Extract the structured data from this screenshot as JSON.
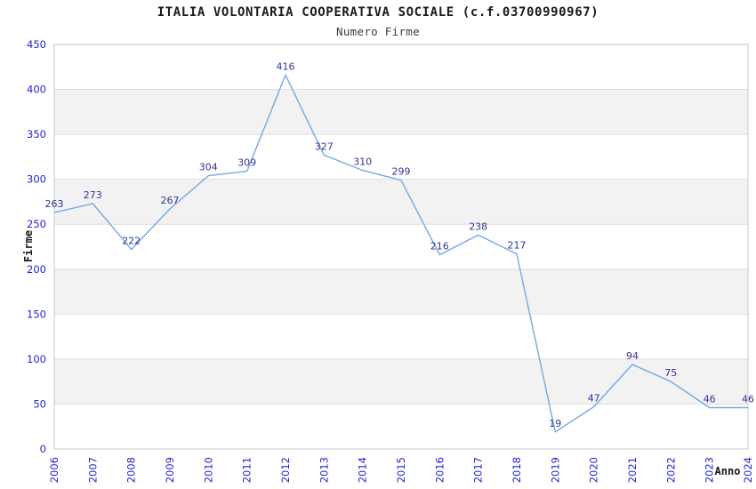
{
  "page": {
    "background": "#ffffff"
  },
  "chart_data": {
    "type": "line",
    "title": "ITALIA VOLONTARIA COOPERATIVA SOCIALE (c.f.03700990967)",
    "subtitle": "Numero Firme",
    "xlabel": "Anno",
    "ylabel": "Firme",
    "categories": [
      "2006",
      "2007",
      "2008",
      "2009",
      "2010",
      "2011",
      "2012",
      "2013",
      "2014",
      "2015",
      "2016",
      "2017",
      "2018",
      "2019",
      "2020",
      "2021",
      "2022",
      "2023",
      "2024"
    ],
    "values": [
      263,
      273,
      222,
      267,
      304,
      309,
      416,
      327,
      310,
      299,
      216,
      238,
      217,
      19,
      47,
      94,
      75,
      46,
      46
    ],
    "ylim": [
      0,
      450
    ],
    "yticks": [
      0,
      50,
      100,
      150,
      200,
      250,
      300,
      350,
      400,
      450
    ],
    "grid": true,
    "legend": "none",
    "data_labels_shown": true,
    "colors": {
      "line": "#74a9e4",
      "data_label": "#333399",
      "tick_label": "#2424cf",
      "axis_title": "#1a1a1a",
      "band": "#f2f2f2",
      "gridline": "#dedede",
      "frame": "#c8c8c8",
      "title": "#1a1a1a",
      "subtitle": "#3c3c3c",
      "plot_background": "#ffffff"
    }
  }
}
